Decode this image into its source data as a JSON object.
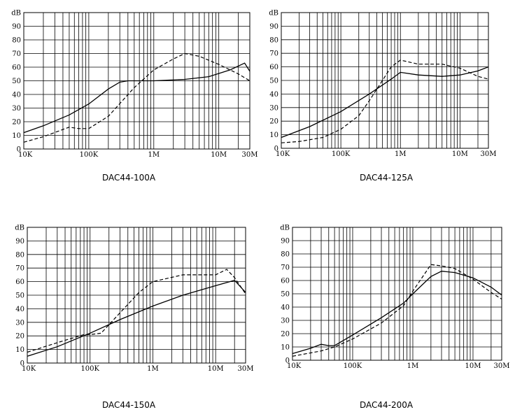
{
  "chart_data": [
    {
      "type": "line",
      "caption": "DAC44-100A",
      "ylabel": "dB",
      "xscale": "log",
      "xlim": [
        10000,
        30000000
      ],
      "ylim": [
        0,
        100
      ],
      "yticks": [
        0,
        10,
        20,
        30,
        40,
        50,
        60,
        70,
        80,
        90
      ],
      "xticks": [
        {
          "value": 10000,
          "label": "10K"
        },
        {
          "value": 100000,
          "label": "100K"
        },
        {
          "value": 1000000,
          "label": "1M"
        },
        {
          "value": 10000000,
          "label": "10M"
        },
        {
          "value": 30000000,
          "label": "30M"
        }
      ],
      "grid": true,
      "series": [
        {
          "style": "solid",
          "points": [
            [
              10000,
              12
            ],
            [
              20000,
              17
            ],
            [
              50000,
              25
            ],
            [
              100000,
              33
            ],
            [
              200000,
              44
            ],
            [
              300000,
              49
            ],
            [
              400000,
              50
            ],
            [
              1000000,
              50
            ],
            [
              3000000,
              51
            ],
            [
              7000000,
              53
            ],
            [
              15000000,
              58
            ],
            [
              25000000,
              63
            ],
            [
              30000000,
              57
            ]
          ]
        },
        {
          "style": "dashed",
          "points": [
            [
              10000,
              5
            ],
            [
              20000,
              9
            ],
            [
              50000,
              16
            ],
            [
              70000,
              15
            ],
            [
              100000,
              15
            ],
            [
              200000,
              24
            ],
            [
              500000,
              45
            ],
            [
              1000000,
              58
            ],
            [
              2000000,
              66
            ],
            [
              3000000,
              70
            ],
            [
              5000000,
              68
            ],
            [
              10000000,
              62
            ],
            [
              20000000,
              55
            ],
            [
              30000000,
              50
            ]
          ]
        }
      ]
    },
    {
      "type": "line",
      "caption": "DAC44-125A",
      "ylabel": "dB",
      "xscale": "log",
      "xlim": [
        10000,
        30000000
      ],
      "ylim": [
        0,
        100
      ],
      "yticks": [
        0,
        10,
        20,
        30,
        40,
        50,
        60,
        70,
        80,
        90
      ],
      "xticks": [
        {
          "value": 10000,
          "label": "10K"
        },
        {
          "value": 100000,
          "label": "100K"
        },
        {
          "value": 1000000,
          "label": "1M"
        },
        {
          "value": 10000000,
          "label": "10M"
        },
        {
          "value": 30000000,
          "label": "30M"
        }
      ],
      "grid": true,
      "series": [
        {
          "style": "solid",
          "points": [
            [
              10000,
              8
            ],
            [
              30000,
              16
            ],
            [
              100000,
              27
            ],
            [
              300000,
              40
            ],
            [
              700000,
              51
            ],
            [
              1000000,
              56
            ],
            [
              2000000,
              54
            ],
            [
              5000000,
              53
            ],
            [
              10000000,
              54
            ],
            [
              20000000,
              57
            ],
            [
              30000000,
              60
            ]
          ]
        },
        {
          "style": "dashed",
          "points": [
            [
              10000,
              4
            ],
            [
              20000,
              5
            ],
            [
              50000,
              8
            ],
            [
              100000,
              14
            ],
            [
              200000,
              24
            ],
            [
              300000,
              35
            ],
            [
              500000,
              50
            ],
            [
              700000,
              60
            ],
            [
              1000000,
              65
            ],
            [
              2000000,
              62
            ],
            [
              5000000,
              62
            ],
            [
              10000000,
              59
            ],
            [
              20000000,
              53
            ],
            [
              30000000,
              51
            ]
          ]
        }
      ]
    },
    {
      "type": "line",
      "caption": "DAC44-150A",
      "ylabel": "dB",
      "xscale": "log",
      "xlim": [
        10000,
        30000000
      ],
      "ylim": [
        0,
        100
      ],
      "yticks": [
        0,
        10,
        20,
        30,
        40,
        50,
        60,
        70,
        80,
        90
      ],
      "xticks": [
        {
          "value": 10000,
          "label": "10K"
        },
        {
          "value": 100000,
          "label": "100K"
        },
        {
          "value": 1000000,
          "label": "1M"
        },
        {
          "value": 10000000,
          "label": "10M"
        },
        {
          "value": 30000000,
          "label": "30M"
        }
      ],
      "grid": true,
      "series": [
        {
          "style": "solid",
          "points": [
            [
              10000,
              5
            ],
            [
              30000,
              12
            ],
            [
              100000,
              22
            ],
            [
              300000,
              32
            ],
            [
              1000000,
              42
            ],
            [
              3000000,
              50
            ],
            [
              10000000,
              57
            ],
            [
              20000000,
              61
            ],
            [
              30000000,
              52
            ]
          ]
        },
        {
          "style": "dashed",
          "points": [
            [
              10000,
              8
            ],
            [
              30000,
              15
            ],
            [
              80000,
              21
            ],
            [
              100000,
              21
            ],
            [
              150000,
              22
            ],
            [
              300000,
              37
            ],
            [
              600000,
              52
            ],
            [
              1000000,
              60
            ],
            [
              3000000,
              65
            ],
            [
              7000000,
              65
            ],
            [
              10000000,
              65
            ],
            [
              15000000,
              69
            ],
            [
              20000000,
              63
            ],
            [
              30000000,
              51
            ]
          ]
        }
      ]
    },
    {
      "type": "line",
      "caption": "DAC44-200A",
      "ylabel": "dB",
      "xscale": "log",
      "xlim": [
        10000,
        30000000
      ],
      "ylim": [
        0,
        100
      ],
      "yticks": [
        0,
        10,
        20,
        30,
        40,
        50,
        60,
        70,
        80,
        90
      ],
      "xticks": [
        {
          "value": 10000,
          "label": "10K"
        },
        {
          "value": 100000,
          "label": "100K"
        },
        {
          "value": 1000000,
          "label": "1M"
        },
        {
          "value": 10000000,
          "label": "10M"
        },
        {
          "value": 30000000,
          "label": "30M"
        }
      ],
      "grid": true,
      "series": [
        {
          "style": "solid",
          "points": [
            [
              10000,
              5
            ],
            [
              20000,
              9
            ],
            [
              30000,
              12
            ],
            [
              40000,
              11
            ],
            [
              50000,
              11
            ],
            [
              100000,
              19
            ],
            [
              300000,
              32
            ],
            [
              700000,
              43
            ],
            [
              1000000,
              50
            ],
            [
              2000000,
              63
            ],
            [
              3000000,
              67
            ],
            [
              5000000,
              66
            ],
            [
              10000000,
              62
            ],
            [
              20000000,
              55
            ],
            [
              30000000,
              49
            ]
          ]
        },
        {
          "style": "dashed",
          "points": [
            [
              10000,
              3
            ],
            [
              30000,
              7
            ],
            [
              50000,
              10
            ],
            [
              100000,
              16
            ],
            [
              300000,
              28
            ],
            [
              700000,
              41
            ],
            [
              1000000,
              52
            ],
            [
              2000000,
              72
            ],
            [
              3000000,
              71
            ],
            [
              5000000,
              69
            ],
            [
              10000000,
              61
            ],
            [
              20000000,
              51
            ],
            [
              30000000,
              46
            ]
          ]
        }
      ]
    }
  ]
}
